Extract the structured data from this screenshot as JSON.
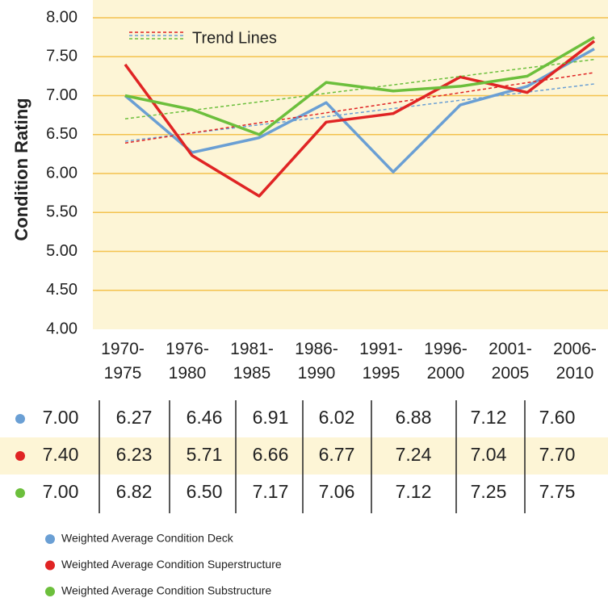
{
  "chart_data": {
    "type": "line",
    "y_label": "Condition Rating",
    "categories": [
      "1970-\n1975",
      "1976-\n1980",
      "1981-\n1985",
      "1986-\n1990",
      "1991-\n1995",
      "1996-\n2000",
      "2001-\n2005",
      "2006-\n2010"
    ],
    "series": [
      {
        "name": "Weighted Average Condition Deck",
        "color": "#6a9fd4",
        "values": [
          7.0,
          6.27,
          6.46,
          6.91,
          6.02,
          6.88,
          7.12,
          7.6
        ],
        "value_labels": [
          "7.00",
          "6.27",
          "6.46",
          "6.91",
          "6.02",
          "6.88",
          "7.12",
          "7.60"
        ]
      },
      {
        "name": "Weighted Average Condition Superstructure",
        "color": "#e02424",
        "values": [
          7.4,
          6.23,
          5.71,
          6.66,
          6.77,
          7.24,
          7.04,
          7.7
        ],
        "value_labels": [
          "7.40",
          "6.23",
          "5.71",
          "6.66",
          "6.77",
          "7.24",
          "7.04",
          "7.70"
        ]
      },
      {
        "name": "Weighted Average Condition Substructure",
        "color": "#6cbf3c",
        "values": [
          7.0,
          6.82,
          6.5,
          7.17,
          7.06,
          7.12,
          7.25,
          7.75
        ],
        "value_labels": [
          "7.00",
          "6.82",
          "6.50",
          "7.17",
          "7.06",
          "7.12",
          "7.25",
          "7.75"
        ]
      }
    ],
    "ylim": [
      4,
      8
    ],
    "yticks": [
      {
        "value": 4,
        "label": "4.00"
      },
      {
        "value": 4.5,
        "label": "4.50"
      },
      {
        "value": 5,
        "label": "5.00"
      },
      {
        "value": 5.5,
        "label": "5.50"
      },
      {
        "value": 6,
        "label": "6.00"
      },
      {
        "value": 6.5,
        "label": "6.50"
      },
      {
        "value": 7,
        "label": "7.00"
      },
      {
        "value": 7.5,
        "label": "7.50"
      },
      {
        "value": 8,
        "label": "8.00"
      }
    ],
    "grid": true,
    "trend_label": "Trend Lines"
  }
}
